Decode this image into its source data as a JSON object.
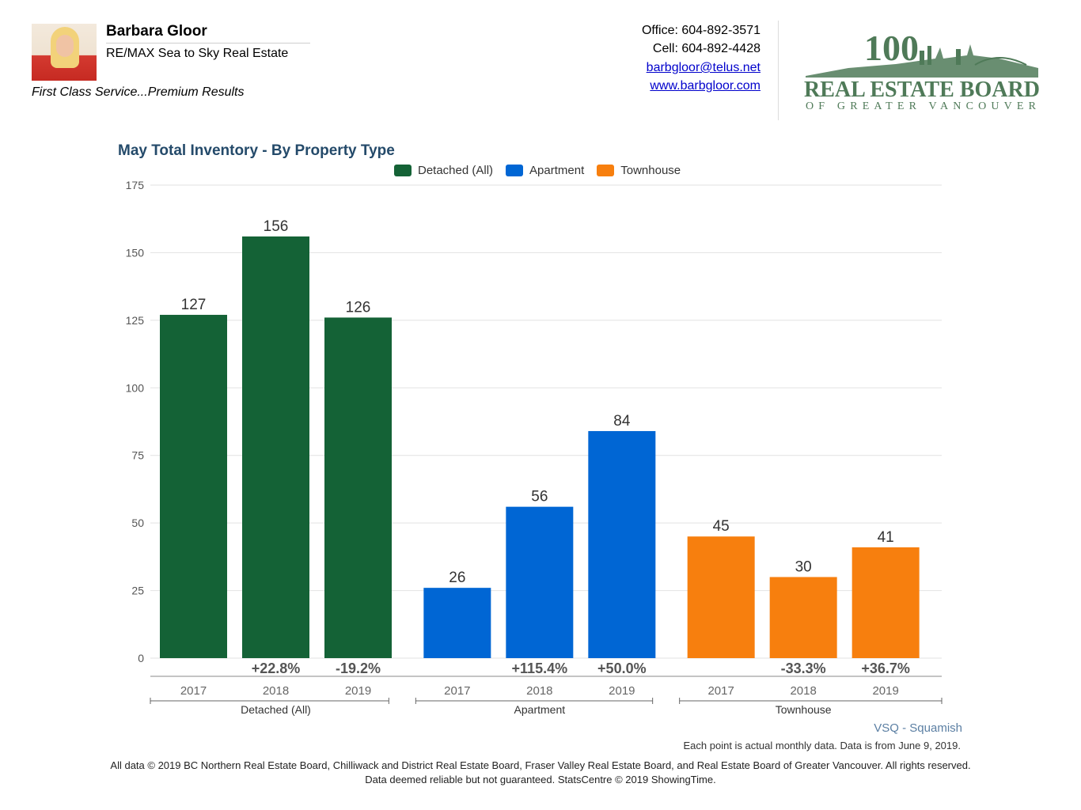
{
  "header": {
    "agent_name": "Barbara Gloor",
    "agent_company": "RE/MAX Sea to Sky Real Estate",
    "tagline": "First Class Service...Premium Results",
    "office": "Office: 604-892-3571",
    "cell": "Cell: 604-892-4428",
    "email": "barbgloor@telus.net",
    "website": "www.barbgloor.com",
    "logo": {
      "numeral": "100",
      "line1": "REAL ESTATE BOARD",
      "line2": "OF GREATER VANCOUVER",
      "color": "#4f7a58"
    }
  },
  "chart_data": {
    "type": "bar",
    "title": "May Total Inventory - By Property Type",
    "xlabel": "",
    "ylabel": "",
    "ylim": [
      0,
      175
    ],
    "yticks": [
      0,
      25,
      50,
      75,
      100,
      125,
      150,
      175
    ],
    "grid": true,
    "legend_position": "top",
    "groups": [
      {
        "name": "Detached (All)",
        "color": "#146236",
        "categories": [
          "2017",
          "2018",
          "2019"
        ],
        "values": [
          127,
          156,
          126
        ],
        "changes": [
          "",
          "+22.8%",
          "-19.2%"
        ]
      },
      {
        "name": "Apartment",
        "color": "#0066d4",
        "categories": [
          "2017",
          "2018",
          "2019"
        ],
        "values": [
          26,
          56,
          84
        ],
        "changes": [
          "",
          "+115.4%",
          "+50.0%"
        ]
      },
      {
        "name": "Townhouse",
        "color": "#f77f0e",
        "categories": [
          "2017",
          "2018",
          "2019"
        ],
        "values": [
          45,
          30,
          41
        ],
        "changes": [
          "",
          "-33.3%",
          "+36.7%"
        ]
      }
    ]
  },
  "footer": {
    "region": "VSQ - Squamish",
    "note": "Each point is actual monthly data. Data is from June 9, 2019.",
    "copyright": "All data © 2019 BC Northern Real Estate Board, Chilliwack and District Real Estate Board, Fraser Valley Real Estate Board, and Real Estate Board of Greater Vancouver. All rights reserved.",
    "disclaimer": "Data deemed reliable but not guaranteed. StatsCentre © 2019 ShowingTime."
  }
}
